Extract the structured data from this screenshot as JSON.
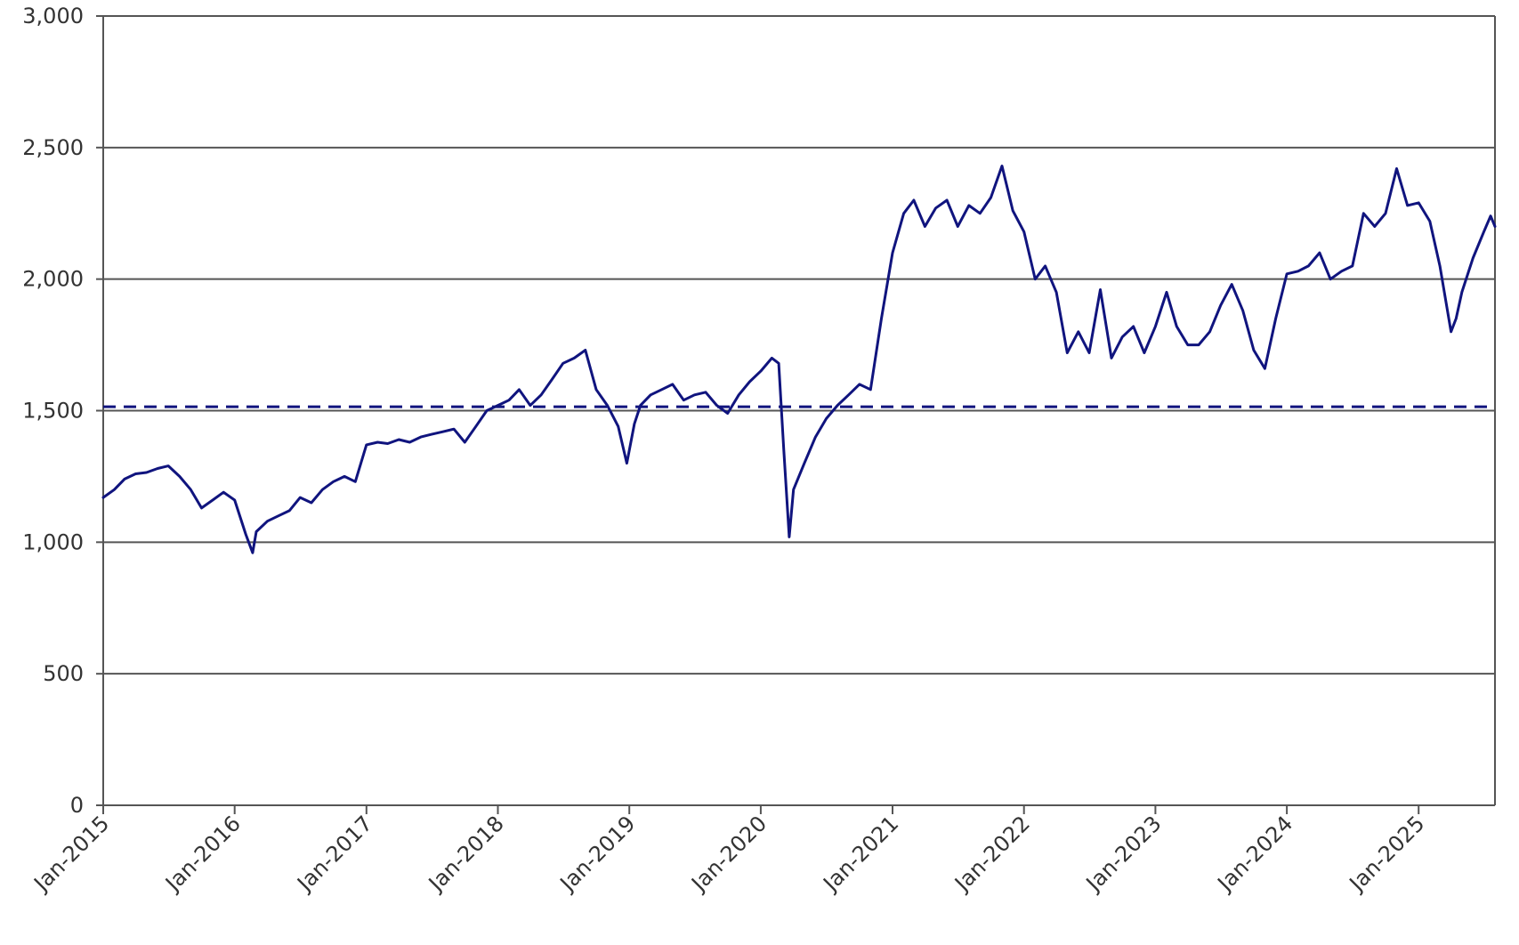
{
  "chart_data": {
    "type": "line",
    "title": "",
    "xlabel": "",
    "ylabel": "",
    "ylim": [
      0,
      3000
    ],
    "xlim": [
      "2015-01-01",
      "2025-08-01"
    ],
    "grid": true,
    "yticks": [
      {
        "value": 0,
        "label": "0"
      },
      {
        "value": 500,
        "label": "500"
      },
      {
        "value": 1000,
        "label": "1,000"
      },
      {
        "value": 1500,
        "label": "1,500"
      },
      {
        "value": 2000,
        "label": "2,000"
      },
      {
        "value": 2500,
        "label": "2,500"
      },
      {
        "value": 3000,
        "label": "3,000"
      }
    ],
    "xticks": [
      {
        "date": "2015-01-01",
        "label": "Jan-2015"
      },
      {
        "date": "2016-01-01",
        "label": "Jan-2016"
      },
      {
        "date": "2017-01-01",
        "label": "Jan-2017"
      },
      {
        "date": "2018-01-01",
        "label": "Jan-2018"
      },
      {
        "date": "2019-01-01",
        "label": "Jan-2019"
      },
      {
        "date": "2020-01-01",
        "label": "Jan-2020"
      },
      {
        "date": "2021-01-01",
        "label": "Jan-2021"
      },
      {
        "date": "2022-01-01",
        "label": "Jan-2022"
      },
      {
        "date": "2023-01-01",
        "label": "Jan-2023"
      },
      {
        "date": "2024-01-01",
        "label": "Jan-2024"
      },
      {
        "date": "2025-01-01",
        "label": "Jan-2025"
      }
    ],
    "colors": {
      "line": "#10147e",
      "grid": "#555555",
      "axis": "#555555"
    },
    "series": [
      {
        "style": "solid",
        "x": [
          "2015-01-01",
          "2015-02-01",
          "2015-03-01",
          "2015-04-01",
          "2015-05-01",
          "2015-06-01",
          "2015-07-01",
          "2015-08-01",
          "2015-09-01",
          "2015-10-01",
          "2015-11-01",
          "2015-12-01",
          "2016-01-01",
          "2016-02-01",
          "2016-02-20",
          "2016-03-01",
          "2016-04-01",
          "2016-05-01",
          "2016-06-01",
          "2016-07-01",
          "2016-08-01",
          "2016-09-01",
          "2016-10-01",
          "2016-11-01",
          "2016-12-01",
          "2017-01-01",
          "2017-02-01",
          "2017-03-01",
          "2017-04-01",
          "2017-05-01",
          "2017-06-01",
          "2017-07-01",
          "2017-08-01",
          "2017-09-01",
          "2017-10-01",
          "2017-11-01",
          "2017-12-01",
          "2018-01-01",
          "2018-02-01",
          "2018-03-01",
          "2018-04-01",
          "2018-05-01",
          "2018-06-01",
          "2018-07-01",
          "2018-08-01",
          "2018-09-01",
          "2018-10-01",
          "2018-11-01",
          "2018-12-01",
          "2018-12-25",
          "2019-01-15",
          "2019-02-01",
          "2019-03-01",
          "2019-04-01",
          "2019-05-01",
          "2019-06-01",
          "2019-07-01",
          "2019-08-01",
          "2019-09-01",
          "2019-10-01",
          "2019-11-01",
          "2019-12-01",
          "2020-01-01",
          "2020-02-01",
          "2020-02-20",
          "2020-03-05",
          "2020-03-20",
          "2020-04-01",
          "2020-05-01",
          "2020-06-01",
          "2020-07-01",
          "2020-08-01",
          "2020-09-01",
          "2020-10-01",
          "2020-11-01",
          "2020-12-01",
          "2021-01-01",
          "2021-02-01",
          "2021-03-01",
          "2021-04-01",
          "2021-05-01",
          "2021-06-01",
          "2021-07-01",
          "2021-08-01",
          "2021-09-01",
          "2021-10-01",
          "2021-11-01",
          "2021-12-01",
          "2022-01-01",
          "2022-02-01",
          "2022-03-01",
          "2022-04-01",
          "2022-05-01",
          "2022-06-01",
          "2022-07-01",
          "2022-08-01",
          "2022-09-01",
          "2022-10-01",
          "2022-11-01",
          "2022-12-01",
          "2023-01-01",
          "2023-02-01",
          "2023-03-01",
          "2023-04-01",
          "2023-05-01",
          "2023-06-01",
          "2023-07-01",
          "2023-08-01",
          "2023-09-01",
          "2023-10-01",
          "2023-11-01",
          "2023-12-01",
          "2024-01-01",
          "2024-02-01",
          "2024-03-01",
          "2024-04-01",
          "2024-05-01",
          "2024-06-01",
          "2024-07-01",
          "2024-08-01",
          "2024-09-01",
          "2024-10-01",
          "2024-11-01",
          "2024-12-01",
          "2025-01-01",
          "2025-02-01",
          "2025-03-01",
          "2025-04-01",
          "2025-04-15",
          "2025-05-01",
          "2025-06-01",
          "2025-07-01",
          "2025-07-20",
          "2025-08-01"
        ],
        "y": [
          1170,
          1200,
          1240,
          1260,
          1265,
          1280,
          1290,
          1250,
          1200,
          1130,
          1160,
          1190,
          1160,
          1030,
          960,
          1040,
          1080,
          1100,
          1120,
          1170,
          1150,
          1200,
          1230,
          1250,
          1230,
          1370,
          1380,
          1375,
          1390,
          1380,
          1400,
          1410,
          1420,
          1430,
          1380,
          1440,
          1500,
          1520,
          1540,
          1580,
          1520,
          1560,
          1620,
          1680,
          1700,
          1730,
          1580,
          1520,
          1440,
          1300,
          1450,
          1520,
          1560,
          1580,
          1600,
          1540,
          1560,
          1570,
          1520,
          1490,
          1560,
          1610,
          1650,
          1700,
          1680,
          1350,
          1020,
          1200,
          1300,
          1400,
          1470,
          1520,
          1560,
          1600,
          1580,
          1850,
          2100,
          2250,
          2300,
          2200,
          2270,
          2300,
          2200,
          2280,
          2250,
          2310,
          2430,
          2260,
          2180,
          2000,
          2050,
          1950,
          1720,
          1800,
          1720,
          1960,
          1700,
          1780,
          1820,
          1720,
          1820,
          1950,
          1820,
          1750,
          1750,
          1800,
          1900,
          1980,
          1880,
          1730,
          1660,
          1850,
          2020,
          2030,
          2050,
          2100,
          2000,
          2030,
          2050,
          2250,
          2200,
          2250,
          2420,
          2280,
          2290,
          2220,
          2050,
          1800,
          1850,
          1950,
          2080,
          2180,
          2240,
          2200
        ]
      },
      {
        "style": "dashed",
        "x": [
          "2015-01-01",
          "2025-08-01"
        ],
        "y": [
          1515,
          1515
        ]
      }
    ]
  }
}
